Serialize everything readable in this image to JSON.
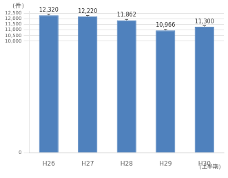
{
  "chart_data": {
    "type": "bar",
    "categories": [
      "H26",
      "H27",
      "H28",
      "H29",
      "H30"
    ],
    "values": [
      12320,
      12220,
      11862,
      10966,
      11300
    ],
    "value_labels": [
      "12,320",
      "12,220",
      "11,862",
      "10,966",
      "11,300"
    ],
    "data_labels": true,
    "errors": [
      80,
      80,
      80,
      80,
      80
    ],
    "color": "#4f81bd",
    "ylabel": "（件）",
    "annotation": "（上半期）",
    "ylim": [
      0,
      12700
    ],
    "yticks": [
      0,
      {
        "value": 10000,
        "label": "10,000"
      },
      {
        "value": 10500,
        "label": "10,500"
      },
      {
        "value": 11000,
        "label": "11,000"
      },
      {
        "value": 11500,
        "label": "11,500"
      },
      {
        "value": 12000,
        "label": "12,000"
      },
      {
        "value": 12500,
        "label": "12,500"
      }
    ],
    "grid": true
  }
}
